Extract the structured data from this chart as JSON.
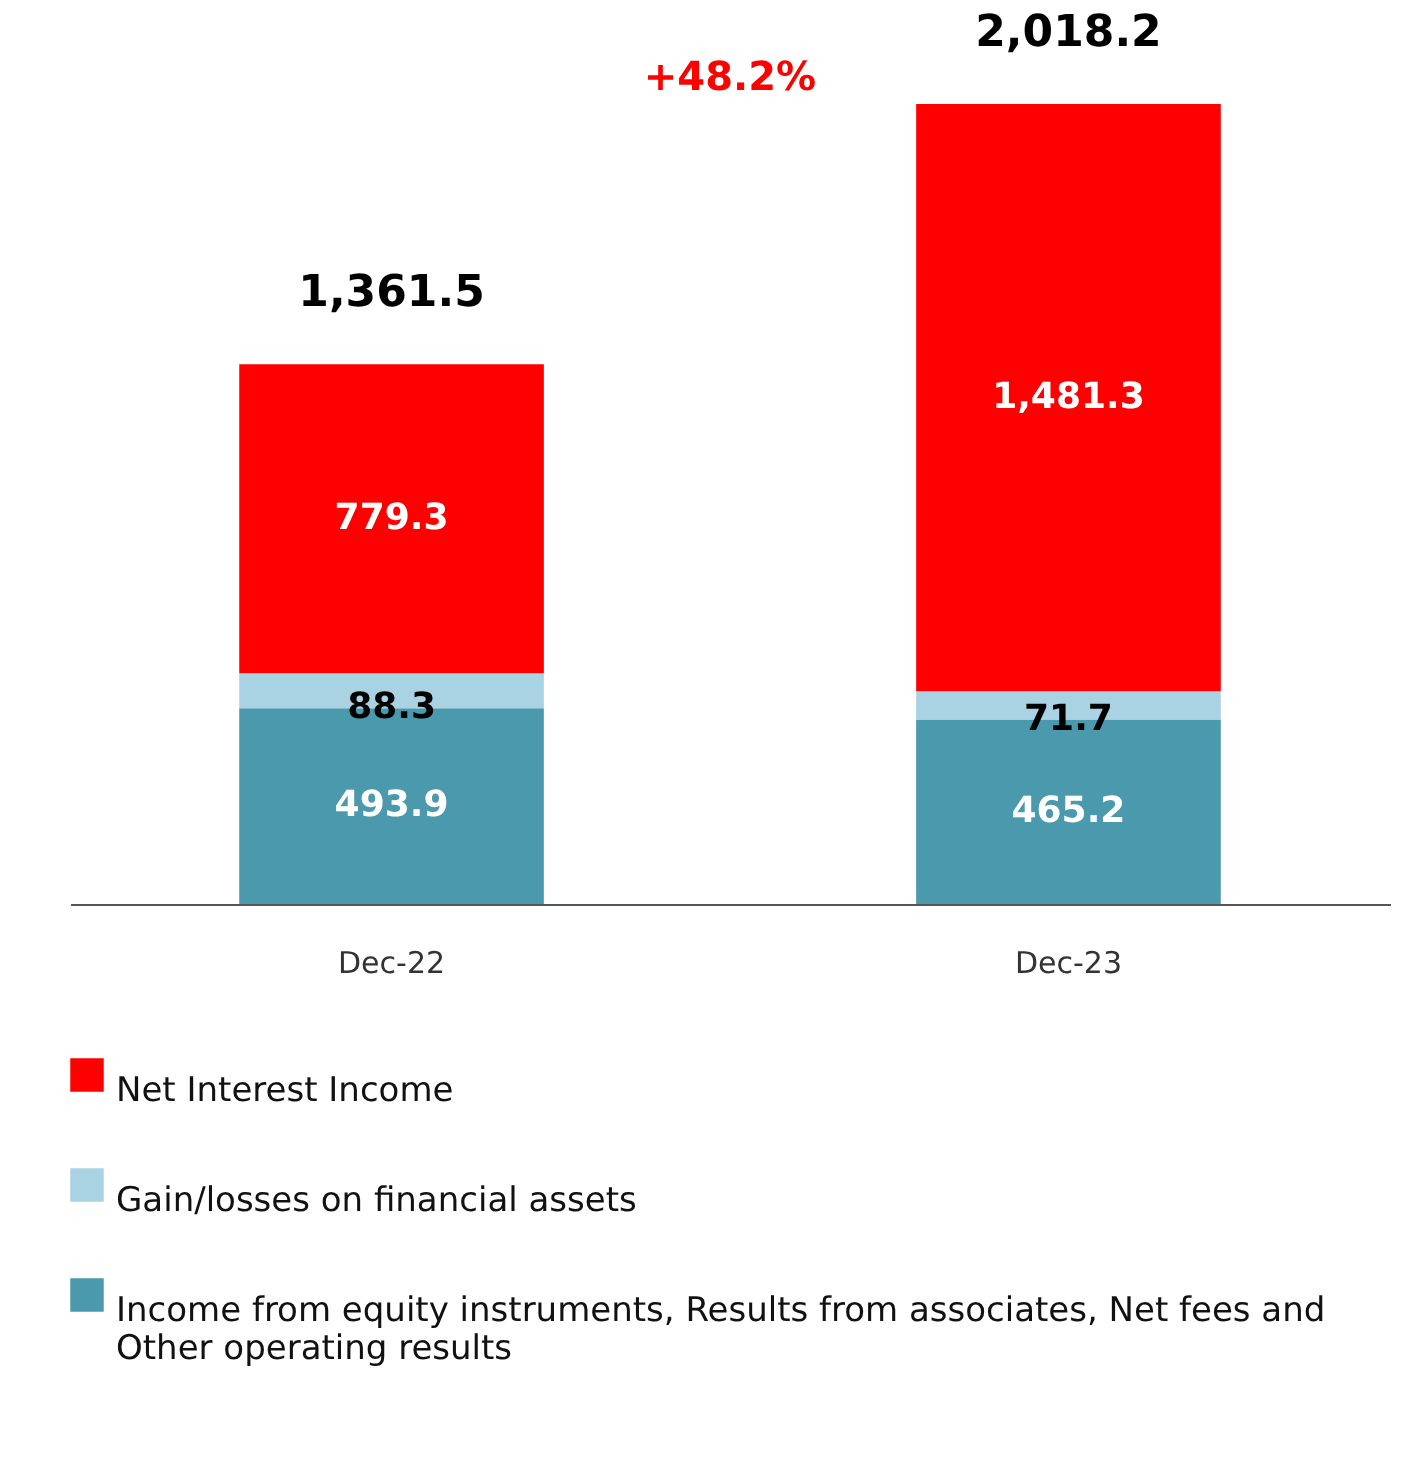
{
  "chart_data": {
    "type": "bar",
    "stacked": true,
    "categories": [
      "Dec-22",
      "Dec-23"
    ],
    "series": [
      {
        "name": "Income from equity instruments, Results from associates, Net fees and Other operating results",
        "color": "#4a99ad",
        "values": [
          493.9,
          465.2
        ],
        "value_labels": [
          "493.9",
          "465.2"
        ]
      },
      {
        "name": "Gain/losses on financial assets",
        "color": "#a9d3e3",
        "values": [
          88.3,
          71.7
        ],
        "value_labels": [
          "88.3",
          "71.7"
        ]
      },
      {
        "name": "Net Interest Income",
        "color": "#ff0000",
        "values": [
          779.3,
          1481.3
        ],
        "value_labels": [
          "779.3",
          "1,481.3"
        ]
      }
    ],
    "totals": [
      "1,361.5",
      "2,018.2"
    ],
    "annotations": [
      "+48.2%"
    ],
    "tick_labels": "x",
    "grid": false,
    "legend": "bottom"
  }
}
